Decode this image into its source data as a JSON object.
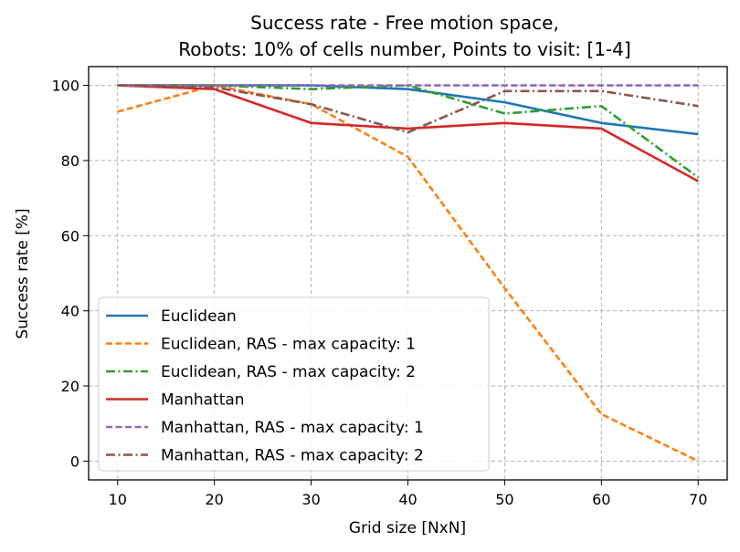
{
  "chart_data": {
    "type": "line",
    "title": "Success rate - Free motion space,",
    "subtitle": "Robots: 10% of cells number, Points to visit: [1-4]",
    "xlabel": "Grid size [NxN]",
    "ylabel": "Success rate [%]",
    "xlim": [
      7,
      73
    ],
    "ylim": [
      -5,
      105
    ],
    "x": [
      10,
      20,
      30,
      40,
      50,
      60,
      70
    ],
    "xticks": [
      "10",
      "20",
      "30",
      "40",
      "50",
      "60",
      "70"
    ],
    "yticks": [
      "0",
      "20",
      "40",
      "60",
      "80",
      "100"
    ],
    "grid": true,
    "legend_position": "lower-left",
    "series": [
      {
        "name": "Euclidean",
        "color": "#1f77b4",
        "style": "solid",
        "values": [
          100,
          100,
          100,
          99,
          95.5,
          90,
          87
        ]
      },
      {
        "name": "Euclidean, RAS - max capacity: 1",
        "color": "#ff7f0e",
        "style": "dashed",
        "values": [
          93,
          100,
          95,
          81,
          46,
          12.5,
          0
        ]
      },
      {
        "name": "Euclidean, RAS - max capacity: 2",
        "color": "#2ca02c",
        "style": "dashdot",
        "values": [
          100,
          100,
          99,
          100,
          92.5,
          94.5,
          75.5
        ]
      },
      {
        "name": "Manhattan",
        "color": "#d62728",
        "style": "solid",
        "values": [
          100,
          99,
          90,
          88.5,
          90,
          88.5,
          74.5
        ]
      },
      {
        "name": "Manhattan, RAS - max capacity: 1",
        "color": "#9467bd",
        "style": "dashed",
        "values": [
          100,
          100,
          100,
          100,
          100,
          100,
          100
        ]
      },
      {
        "name": "Manhattan, RAS - max capacity: 2",
        "color": "#8c564b",
        "style": "dashdot",
        "values": [
          100,
          99.5,
          95,
          87.5,
          98.5,
          98.5,
          94.5
        ]
      }
    ]
  }
}
